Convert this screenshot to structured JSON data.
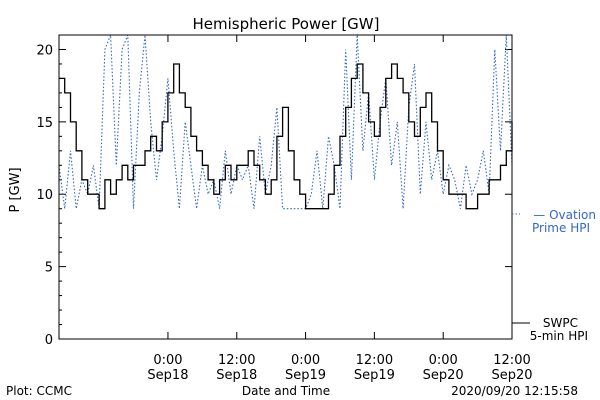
{
  "chart_data": {
    "type": "line",
    "title": "Hemispheric Power [GW]",
    "xlabel": "Date and Time",
    "ylabel": "P [GW]",
    "ylim": [
      0,
      21
    ],
    "xlim": [
      "2020-09-17T05:00",
      "2020-09-20T12:00"
    ],
    "y_ticks": [
      0,
      5,
      10,
      15,
      20
    ],
    "x_ticks": [
      {
        "at": "2020-09-18T00:00",
        "line1": "0:00",
        "line2": "Sep18"
      },
      {
        "at": "2020-09-18T12:00",
        "line1": "12:00",
        "line2": "Sep18"
      },
      {
        "at": "2020-09-19T00:00",
        "line1": "0:00",
        "line2": "Sep19"
      },
      {
        "at": "2020-09-19T12:00",
        "line1": "12:00",
        "line2": "Sep19"
      },
      {
        "at": "2020-09-20T00:00",
        "line1": "0:00",
        "line2": "Sep20"
      },
      {
        "at": "2020-09-20T12:00",
        "line1": "12:00",
        "line2": "Sep20"
      }
    ],
    "series": [
      {
        "name": "SWPC 5-min HPI",
        "legend_lines": [
          "SWPC",
          "5-min HPI"
        ],
        "style": "solid",
        "color": "#000000",
        "points": [
          [
            "2020-09-17T05:00",
            18
          ],
          [
            "2020-09-17T06:00",
            17
          ],
          [
            "2020-09-17T07:00",
            15
          ],
          [
            "2020-09-17T08:00",
            13
          ],
          [
            "2020-09-17T09:00",
            11
          ],
          [
            "2020-09-17T10:00",
            10
          ],
          [
            "2020-09-17T11:00",
            10
          ],
          [
            "2020-09-17T12:00",
            9
          ],
          [
            "2020-09-17T13:00",
            11
          ],
          [
            "2020-09-17T14:00",
            10
          ],
          [
            "2020-09-17T15:00",
            11
          ],
          [
            "2020-09-17T16:00",
            12
          ],
          [
            "2020-09-17T17:00",
            11
          ],
          [
            "2020-09-17T18:00",
            12
          ],
          [
            "2020-09-17T19:00",
            12
          ],
          [
            "2020-09-17T20:00",
            13
          ],
          [
            "2020-09-17T21:00",
            14
          ],
          [
            "2020-09-17T22:00",
            13
          ],
          [
            "2020-09-17T23:00",
            15
          ],
          [
            "2020-09-18T00:00",
            17
          ],
          [
            "2020-09-18T01:00",
            19
          ],
          [
            "2020-09-18T02:00",
            17
          ],
          [
            "2020-09-18T03:00",
            16
          ],
          [
            "2020-09-18T04:00",
            14
          ],
          [
            "2020-09-18T05:00",
            13
          ],
          [
            "2020-09-18T06:00",
            12
          ],
          [
            "2020-09-18T07:00",
            11
          ],
          [
            "2020-09-18T08:00",
            10
          ],
          [
            "2020-09-18T09:00",
            11
          ],
          [
            "2020-09-18T10:00",
            12
          ],
          [
            "2020-09-18T11:00",
            11
          ],
          [
            "2020-09-18T12:00",
            12
          ],
          [
            "2020-09-18T13:00",
            12
          ],
          [
            "2020-09-18T14:00",
            13
          ],
          [
            "2020-09-18T15:00",
            12
          ],
          [
            "2020-09-18T16:00",
            11
          ],
          [
            "2020-09-18T17:00",
            10
          ],
          [
            "2020-09-18T18:00",
            11
          ],
          [
            "2020-09-18T19:00",
            14
          ],
          [
            "2020-09-18T20:00",
            16
          ],
          [
            "2020-09-18T21:00",
            13
          ],
          [
            "2020-09-18T22:00",
            11
          ],
          [
            "2020-09-18T23:00",
            10
          ],
          [
            "2020-09-19T00:00",
            9
          ],
          [
            "2020-09-19T01:00",
            9
          ],
          [
            "2020-09-19T02:00",
            9
          ],
          [
            "2020-09-19T03:00",
            9
          ],
          [
            "2020-09-19T04:00",
            10
          ],
          [
            "2020-09-19T05:00",
            12
          ],
          [
            "2020-09-19T06:00",
            14
          ],
          [
            "2020-09-19T07:00",
            16
          ],
          [
            "2020-09-19T08:00",
            18
          ],
          [
            "2020-09-19T09:00",
            19
          ],
          [
            "2020-09-19T10:00",
            17
          ],
          [
            "2020-09-19T11:00",
            15
          ],
          [
            "2020-09-19T12:00",
            14
          ],
          [
            "2020-09-19T13:00",
            16
          ],
          [
            "2020-09-19T14:00",
            18
          ],
          [
            "2020-09-19T15:00",
            19
          ],
          [
            "2020-09-19T16:00",
            18
          ],
          [
            "2020-09-19T17:00",
            17
          ],
          [
            "2020-09-19T18:00",
            15
          ],
          [
            "2020-09-19T19:00",
            14
          ],
          [
            "2020-09-19T20:00",
            16
          ],
          [
            "2020-09-19T21:00",
            17
          ],
          [
            "2020-09-19T22:00",
            15
          ],
          [
            "2020-09-19T23:00",
            13
          ],
          [
            "2020-09-20T00:00",
            11
          ],
          [
            "2020-09-20T01:00",
            10
          ],
          [
            "2020-09-20T02:00",
            10
          ],
          [
            "2020-09-20T03:00",
            10
          ],
          [
            "2020-09-20T04:00",
            9
          ],
          [
            "2020-09-20T05:00",
            9
          ],
          [
            "2020-09-20T06:00",
            10
          ],
          [
            "2020-09-20T07:00",
            10
          ],
          [
            "2020-09-20T08:00",
            11
          ],
          [
            "2020-09-20T09:00",
            11
          ],
          [
            "2020-09-20T10:00",
            12
          ],
          [
            "2020-09-20T11:00",
            13
          ],
          [
            "2020-09-20T12:00",
            15
          ]
        ]
      },
      {
        "name": "Ovation Prime HPI",
        "legend_lines": [
          "— Ovation",
          "Prime HPI"
        ],
        "style": "dotted",
        "color": "#3366cc",
        "points": [
          [
            "2020-09-17T05:00",
            12
          ],
          [
            "2020-09-17T06:00",
            9
          ],
          [
            "2020-09-17T07:00",
            13
          ],
          [
            "2020-09-17T08:00",
            9
          ],
          [
            "2020-09-17T09:00",
            11
          ],
          [
            "2020-09-17T10:00",
            10
          ],
          [
            "2020-09-17T11:00",
            12
          ],
          [
            "2020-09-17T12:00",
            9
          ],
          [
            "2020-09-17T13:00",
            20
          ],
          [
            "2020-09-17T14:00",
            21
          ],
          [
            "2020-09-17T15:00",
            12
          ],
          [
            "2020-09-17T16:00",
            20
          ],
          [
            "2020-09-17T17:00",
            21
          ],
          [
            "2020-09-17T18:00",
            9
          ],
          [
            "2020-09-17T19:00",
            17
          ],
          [
            "2020-09-17T20:00",
            21
          ],
          [
            "2020-09-17T21:00",
            15
          ],
          [
            "2020-09-17T22:00",
            11
          ],
          [
            "2020-09-17T23:00",
            14
          ],
          [
            "2020-09-18T00:00",
            18
          ],
          [
            "2020-09-18T01:00",
            13
          ],
          [
            "2020-09-18T02:00",
            9
          ],
          [
            "2020-09-18T03:00",
            15
          ],
          [
            "2020-09-18T04:00",
            12
          ],
          [
            "2020-09-18T05:00",
            9
          ],
          [
            "2020-09-18T06:00",
            12
          ],
          [
            "2020-09-18T07:00",
            10
          ],
          [
            "2020-09-18T08:00",
            11
          ],
          [
            "2020-09-18T09:00",
            9
          ],
          [
            "2020-09-18T10:00",
            13
          ],
          [
            "2020-09-18T11:00",
            10
          ],
          [
            "2020-09-18T12:00",
            12
          ],
          [
            "2020-09-18T13:00",
            11
          ],
          [
            "2020-09-18T14:00",
            12
          ],
          [
            "2020-09-18T15:00",
            9
          ],
          [
            "2020-09-18T16:00",
            14
          ],
          [
            "2020-09-18T17:00",
            10
          ],
          [
            "2020-09-18T18:00",
            12
          ],
          [
            "2020-09-18T19:00",
            16
          ],
          [
            "2020-09-18T20:00",
            9
          ],
          [
            "2020-09-18T21:00",
            9
          ],
          [
            "2020-09-18T22:00",
            9
          ],
          [
            "2020-09-18T23:00",
            9
          ],
          [
            "2020-09-19T00:00",
            9
          ],
          [
            "2020-09-19T01:00",
            10
          ],
          [
            "2020-09-19T02:00",
            13
          ],
          [
            "2020-09-19T03:00",
            9
          ],
          [
            "2020-09-19T04:00",
            14
          ],
          [
            "2020-09-19T05:00",
            12
          ],
          [
            "2020-09-19T06:00",
            9
          ],
          [
            "2020-09-19T07:00",
            20
          ],
          [
            "2020-09-19T08:00",
            11
          ],
          [
            "2020-09-19T09:00",
            21
          ],
          [
            "2020-09-19T10:00",
            13
          ],
          [
            "2020-09-19T11:00",
            17
          ],
          [
            "2020-09-19T12:00",
            11
          ],
          [
            "2020-09-19T13:00",
            15
          ],
          [
            "2020-09-19T14:00",
            18
          ],
          [
            "2020-09-19T15:00",
            12
          ],
          [
            "2020-09-19T16:00",
            15
          ],
          [
            "2020-09-19T17:00",
            9
          ],
          [
            "2020-09-19T18:00",
            16
          ],
          [
            "2020-09-19T19:00",
            19
          ],
          [
            "2020-09-19T20:00",
            10
          ],
          [
            "2020-09-19T21:00",
            15
          ],
          [
            "2020-09-19T22:00",
            11
          ],
          [
            "2020-09-19T23:00",
            13
          ],
          [
            "2020-09-20T00:00",
            10
          ],
          [
            "2020-09-20T01:00",
            12
          ],
          [
            "2020-09-20T02:00",
            11
          ],
          [
            "2020-09-20T03:00",
            9
          ],
          [
            "2020-09-20T04:00",
            12
          ],
          [
            "2020-09-20T05:00",
            10
          ],
          [
            "2020-09-20T06:00",
            11
          ],
          [
            "2020-09-20T07:00",
            13
          ],
          [
            "2020-09-20T08:00",
            10
          ],
          [
            "2020-09-20T09:00",
            20
          ],
          [
            "2020-09-20T10:00",
            13
          ],
          [
            "2020-09-20T11:00",
            21
          ],
          [
            "2020-09-20T12:00",
            12
          ]
        ]
      }
    ],
    "footer": {
      "left": "Plot: CCMC",
      "center": "Date and Time",
      "right": "2020/09/20 12:15:58"
    }
  }
}
